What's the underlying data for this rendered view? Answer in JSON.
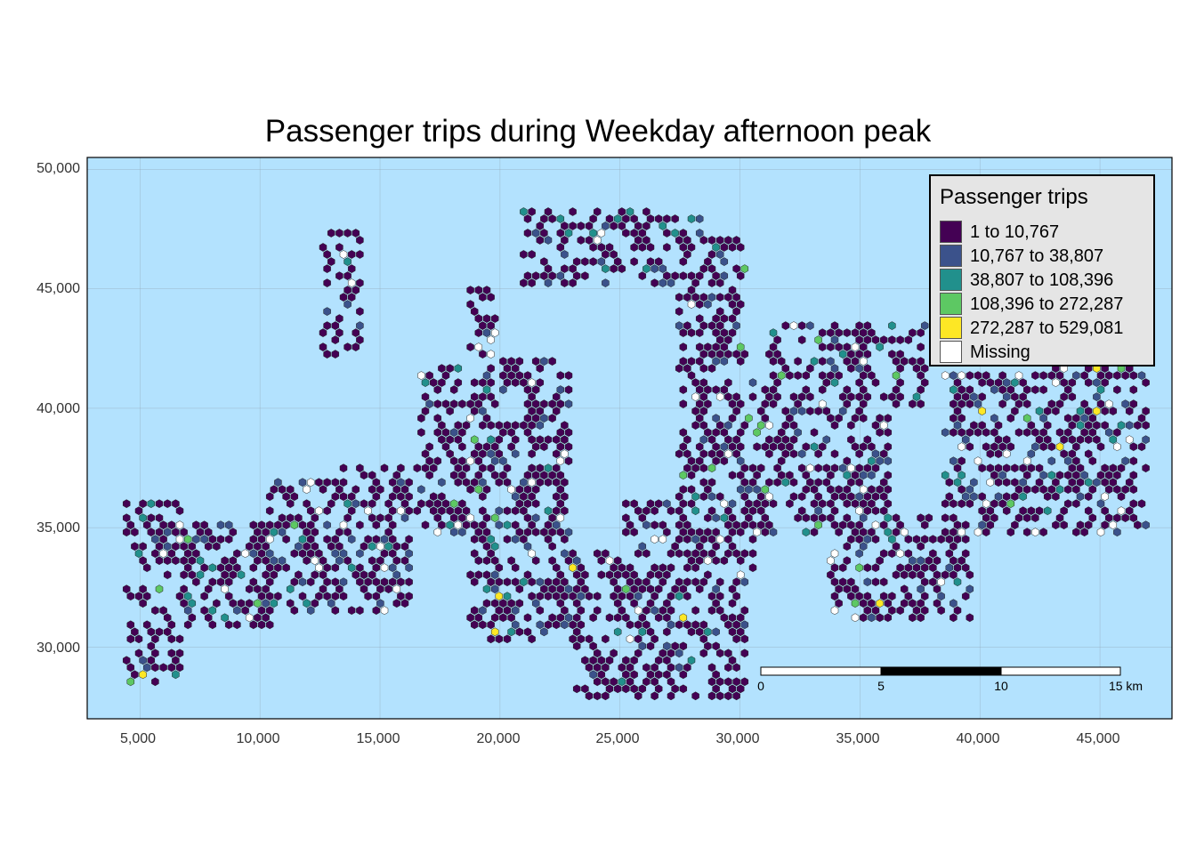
{
  "map": {
    "title": "Passenger trips during Weekday afternoon peak",
    "colors": {
      "water": "#b3e2fe",
      "hex_stroke": "#222222",
      "grid": "#8fa4b3",
      "frame": "#000000"
    },
    "axes": {
      "x_range": [
        2800,
        48000
      ],
      "y_range": [
        27000,
        50500
      ],
      "x_ticks": [
        "5,000",
        "10,000",
        "15,000",
        "20,000",
        "25,000",
        "30,000",
        "35,000",
        "40,000",
        "45,000"
      ],
      "y_ticks": [
        "50,000",
        "45,000",
        "40,000",
        "35,000",
        "30,000"
      ]
    },
    "legend": {
      "title": "Passenger trips",
      "placement": "top-right",
      "items": [
        {
          "label": "1 to 10,767",
          "color": "#440154"
        },
        {
          "label": "10,767 to 38,807",
          "color": "#3b528b"
        },
        {
          "label": "38,807 to 108,396",
          "color": "#21908c"
        },
        {
          "label": "108,396 to 272,287",
          "color": "#5dc863"
        },
        {
          "label": "272,287 to 529,081",
          "color": "#fde725"
        },
        {
          "label": "Missing",
          "color": "#ffffff"
        }
      ]
    },
    "scale_bar": {
      "labels": [
        "0",
        "5",
        "10",
        "15 km"
      ]
    }
  }
}
